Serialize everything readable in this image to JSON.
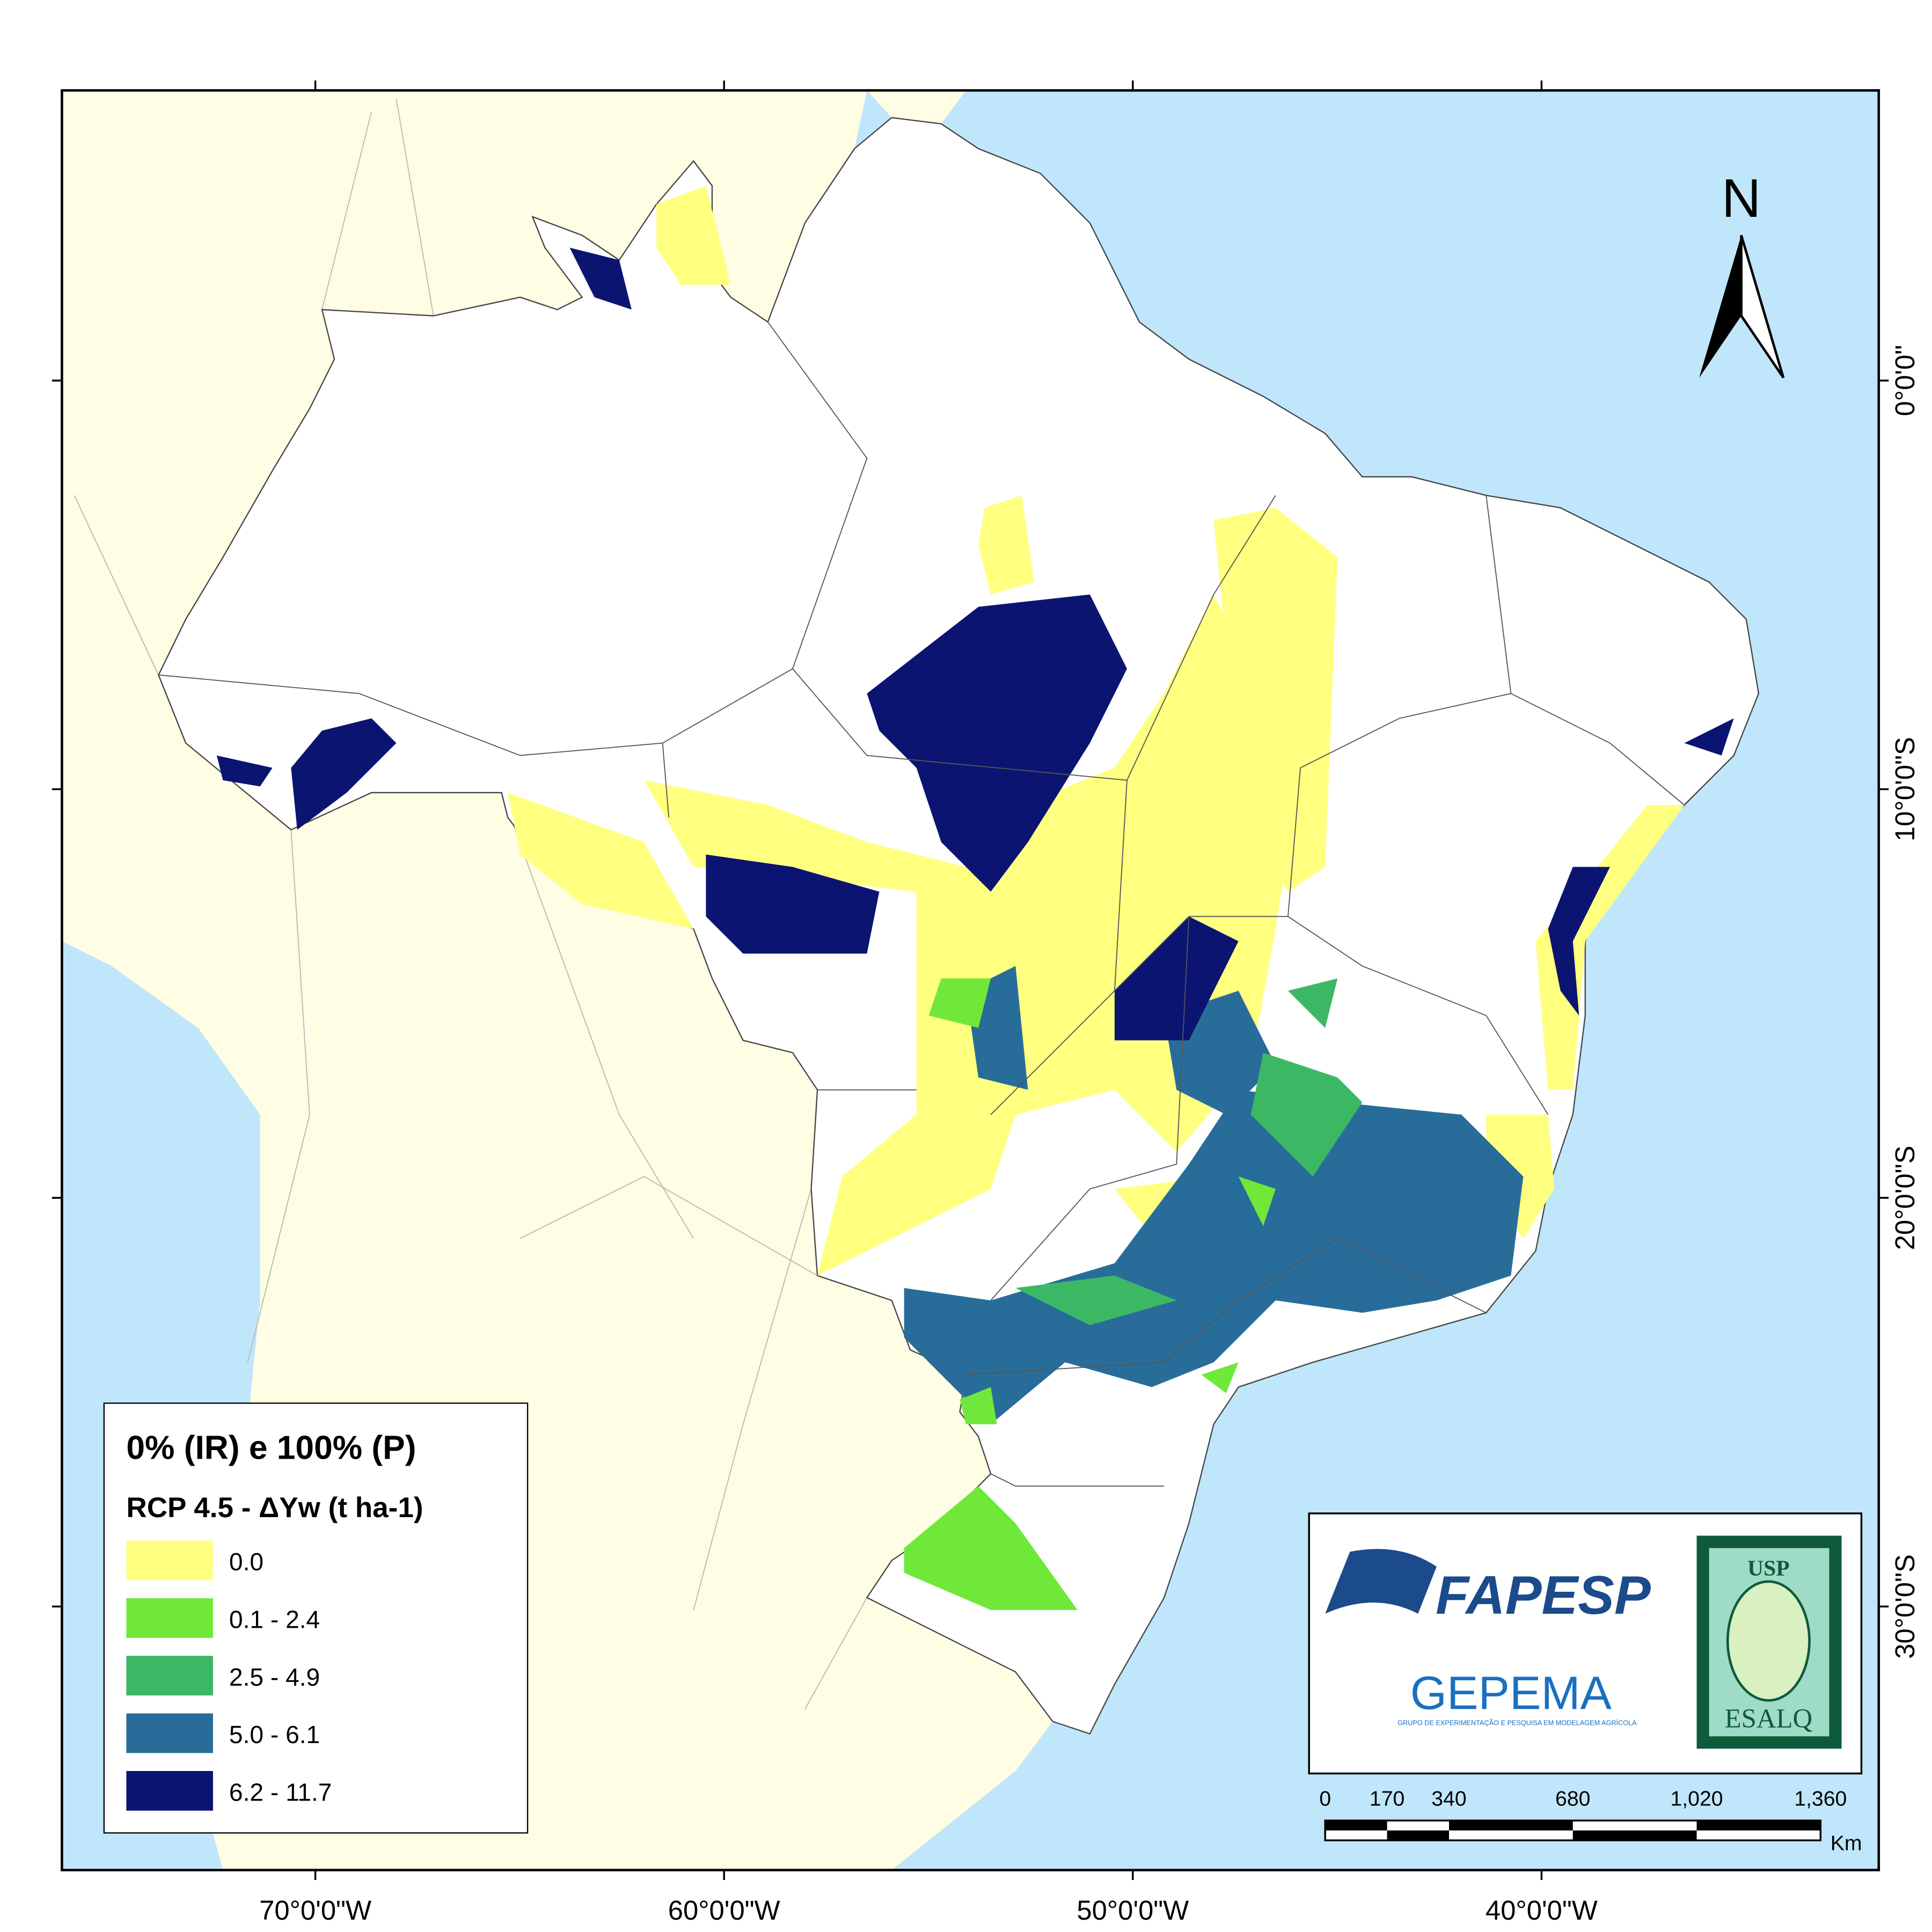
{
  "map": {
    "xlim": [
      -76.2,
      -31.75
    ],
    "ylim": [
      -36.45,
      7.1
    ],
    "lon_ticks": [
      {
        "value": -70,
        "label": "70°0'0\"W"
      },
      {
        "value": -60,
        "label": "60°0'0\"W"
      },
      {
        "value": -50,
        "label": "50°0'0\"W"
      },
      {
        "value": -40,
        "label": "40°0'0\"W"
      }
    ],
    "lat_ticks": [
      {
        "value": 0,
        "label": "0°0'0\""
      },
      {
        "value": -10,
        "label": "10°0'0\"S"
      },
      {
        "value": -20,
        "label": "20°0'0\"S"
      },
      {
        "value": -30,
        "label": "30°0'0\"S"
      }
    ]
  },
  "legend": {
    "title": "0% (IR) e 100% (P)",
    "subtitle": "RCP 4.5 - ΔYw (t ha-1)",
    "items": [
      {
        "label": "0.0",
        "color": "#ffff80"
      },
      {
        "label": "0.1 - 2.4",
        "color": "#6fe83a"
      },
      {
        "label": "2.5 - 4.9",
        "color": "#3cb865"
      },
      {
        "label": "5.0 - 6.1",
        "color": "#286d9a"
      },
      {
        "label": "6.2 - 11.7",
        "color": "#0c1472"
      }
    ]
  },
  "north_arrow": "N",
  "scale_bar": {
    "ticks": [
      0,
      170,
      340,
      680,
      {
        "value": 1020,
        "label": "1,020"
      },
      {
        "value": 1360,
        "label": "1,360"
      }
    ],
    "unit": "Km"
  },
  "logos": {
    "fapesp": "FAPESP",
    "gepema": "GEPEMA",
    "gepema_caption": "GRUPO DE EXPERIMENTAÇÃO E PESQUISA EM MODELAGEM AGRÍCOLA",
    "usp": "USP",
    "esalq": "ESALQ"
  }
}
